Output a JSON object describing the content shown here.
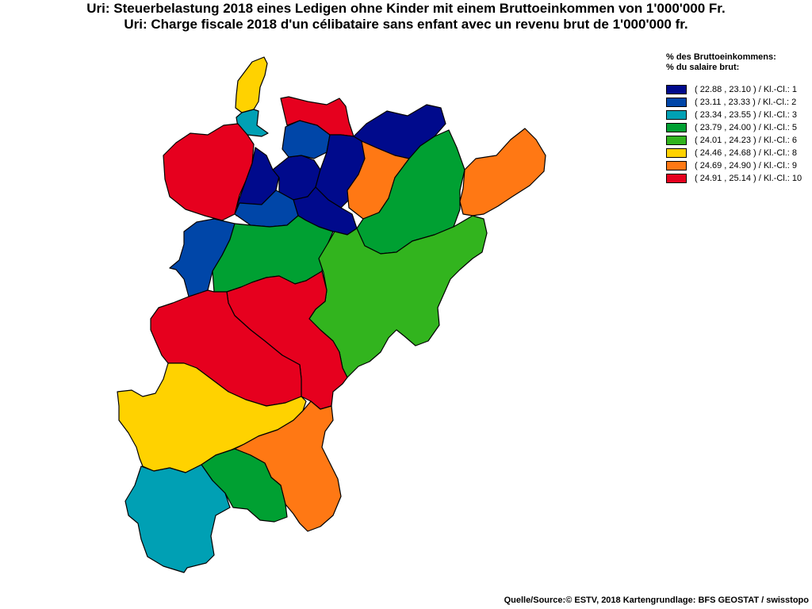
{
  "title": {
    "line1": "Uri: Steuerbelastung 2018 eines Ledigen ohne Kinder mit einem Bruttoeinkommen von 1'000'000 Fr.",
    "line2": "Uri: Charge fiscale 2018 d'un célibataire sans enfant avec un revenu brut de 1'000'000 fr."
  },
  "legend": {
    "heading_de": "% des Bruttoeinkommens:",
    "heading_fr": "% du salaire brut:",
    "classes": [
      {
        "label": "( 22.88 , 23.10 ) / Kl.-Cl.: 1",
        "color": "#000a8c"
      },
      {
        "label": "( 23.11 , 23.33 ) / Kl.-Cl.: 2",
        "color": "#0046a8"
      },
      {
        "label": "( 23.34 , 23.55 ) / Kl.-Cl.: 3",
        "color": "#00a0b4"
      },
      {
        "label": "( 23.79 , 24.00 ) / Kl.-Cl.: 5",
        "color": "#00a032"
      },
      {
        "label": "( 24.01 , 24.23 ) / Kl.-Cl.: 6",
        "color": "#32b41e"
      },
      {
        "label": "( 24.46 , 24.68 ) / Kl.-Cl.: 8",
        "color": "#ffd200"
      },
      {
        "label": "( 24.69 , 24.90 ) / Kl.-Cl.: 9",
        "color": "#ff7814"
      },
      {
        "label": "( 24.91 , 25.14 ) / Kl.-Cl.: 10",
        "color": "#e6001e"
      }
    ]
  },
  "source": "Quelle/Source:© ESTV, 2018 Kartengrundlage: BFS GEOSTAT / swisstopo"
}
